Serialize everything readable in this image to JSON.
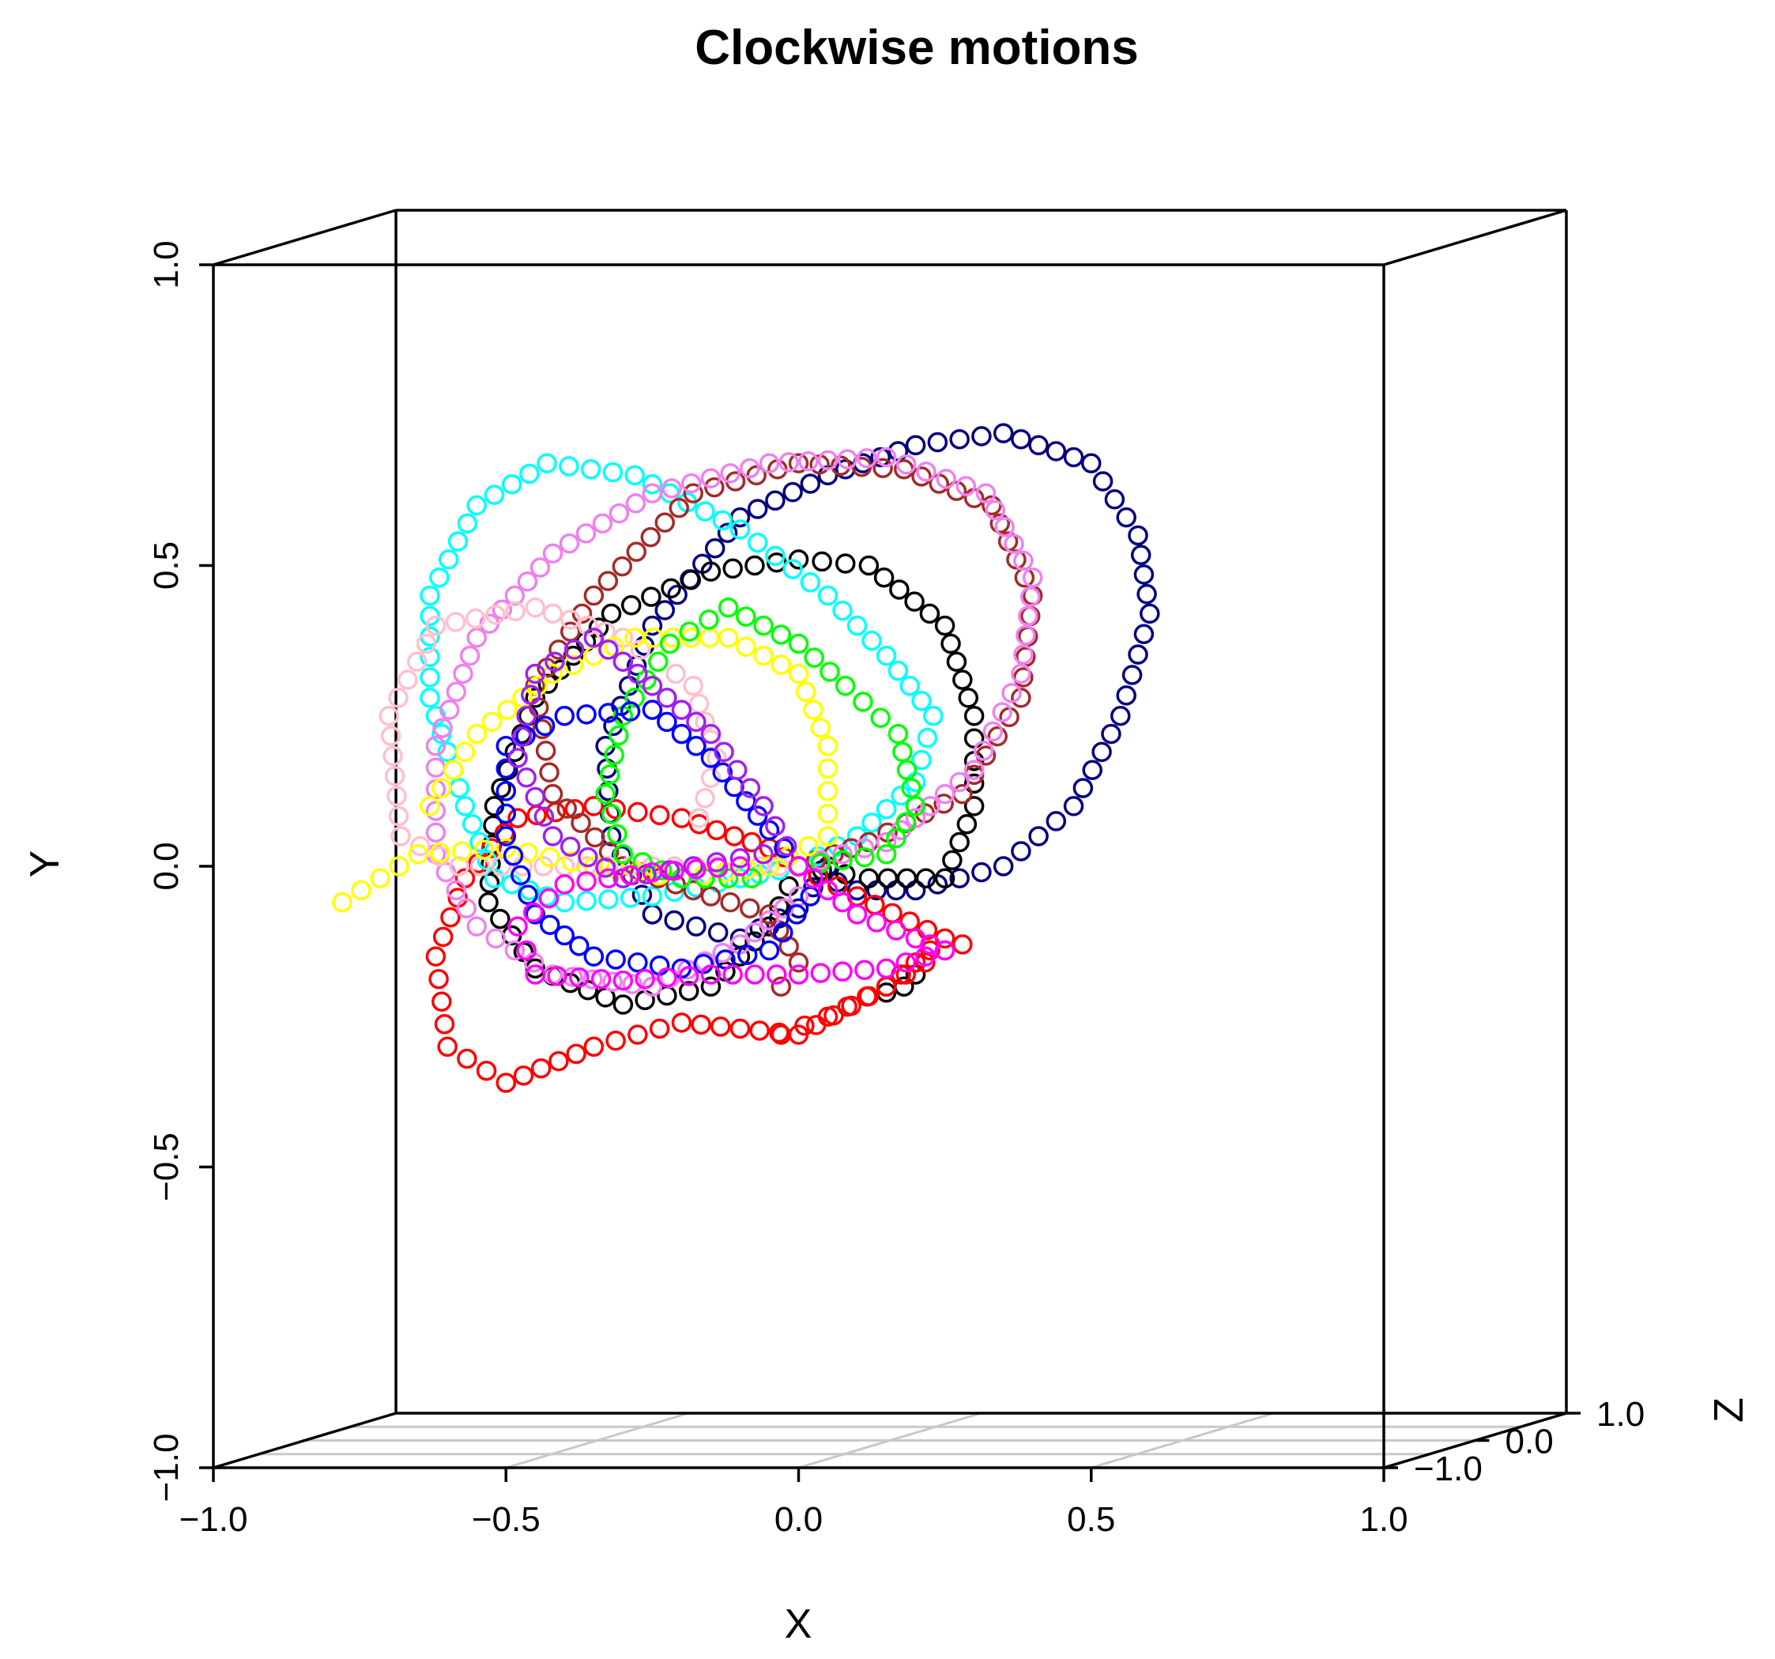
{
  "chart_data": {
    "type": "scatter",
    "projection": "3d",
    "title": "Clockwise motions",
    "xlabel": "X",
    "ylabel": "Y",
    "zlabel": "Z",
    "xlim": [
      -1.0,
      1.0
    ],
    "ylim": [
      -1.0,
      1.0
    ],
    "zlim": [
      -1.0,
      1.0
    ],
    "x_ticks": [
      "−1.0",
      "−0.5",
      "0.0",
      "0.5",
      "1.0"
    ],
    "y_ticks": [
      "−1.0",
      "−0.5",
      "0.0",
      "0.5",
      "1.0"
    ],
    "z_ticks": [
      "−1.0",
      "0.0",
      "1.0"
    ],
    "grid": "floor",
    "marker": "open-circle",
    "series": [
      {
        "color": "#000080",
        "points": [
          [
            0.0,
            0.0
          ],
          [
            0.1,
            -0.04
          ],
          [
            0.2,
            -0.04
          ],
          [
            0.35,
            0.0
          ],
          [
            0.47,
            0.1
          ],
          [
            0.55,
            0.25
          ],
          [
            0.6,
            0.42
          ],
          [
            0.58,
            0.55
          ],
          [
            0.5,
            0.67
          ],
          [
            0.35,
            0.72
          ],
          [
            0.2,
            0.7
          ],
          [
            0.05,
            0.65
          ],
          [
            -0.1,
            0.58
          ],
          [
            -0.25,
            0.4
          ],
          [
            -0.33,
            0.2
          ],
          [
            -0.32,
            0.05
          ],
          [
            -0.25,
            -0.08
          ],
          [
            -0.1,
            -0.12
          ],
          [
            0.0,
            -0.07
          ],
          [
            0.05,
            0.0
          ]
        ]
      },
      {
        "color": "#000000",
        "points": [
          [
            0.0,
            0.0
          ],
          [
            0.12,
            -0.02
          ],
          [
            0.25,
            -0.02
          ],
          [
            0.3,
            0.1
          ],
          [
            0.3,
            0.25
          ],
          [
            0.25,
            0.4
          ],
          [
            0.12,
            0.5
          ],
          [
            0.0,
            0.51
          ],
          [
            -0.15,
            0.49
          ],
          [
            -0.32,
            0.42
          ],
          [
            -0.45,
            0.28
          ],
          [
            -0.52,
            0.1
          ],
          [
            -0.53,
            -0.06
          ],
          [
            -0.45,
            -0.17
          ],
          [
            -0.3,
            -0.23
          ],
          [
            -0.15,
            -0.2
          ],
          [
            -0.05,
            -0.1
          ],
          [
            0.0,
            0.0
          ]
        ]
      },
      {
        "color": "#000000",
        "points": [
          [
            0.15,
            -0.21
          ],
          [
            0.18,
            -0.2
          ],
          [
            0.2,
            -0.18
          ]
        ]
      },
      {
        "color": "#ff0000",
        "points": [
          [
            0.0,
            0.0
          ],
          [
            0.1,
            -0.05
          ],
          [
            0.25,
            -0.12
          ],
          [
            0.15,
            -0.2
          ],
          [
            0.0,
            -0.28
          ],
          [
            -0.2,
            -0.26
          ],
          [
            -0.35,
            -0.3
          ],
          [
            -0.5,
            -0.36
          ],
          [
            -0.6,
            -0.3
          ],
          [
            -0.62,
            -0.15
          ],
          [
            -0.57,
            -0.02
          ],
          [
            -0.48,
            0.08
          ],
          [
            -0.35,
            0.1
          ],
          [
            -0.2,
            0.08
          ],
          [
            -0.05,
            0.03
          ],
          [
            0.0,
            0.0
          ]
        ]
      },
      {
        "color": "#ff0000",
        "points": [
          [
            -0.03,
            -0.28
          ],
          [
            0.05,
            -0.25
          ],
          [
            0.15,
            -0.2
          ],
          [
            0.25,
            -0.14
          ],
          [
            0.28,
            -0.13
          ]
        ]
      },
      {
        "color": "#00ffff",
        "points": [
          [
            0.0,
            0.0
          ],
          [
            0.1,
            0.05
          ],
          [
            0.2,
            0.14
          ],
          [
            0.23,
            0.25
          ],
          [
            0.15,
            0.35
          ],
          [
            0.05,
            0.45
          ],
          [
            -0.1,
            0.56
          ],
          [
            -0.28,
            0.65
          ],
          [
            -0.43,
            0.67
          ],
          [
            -0.55,
            0.6
          ],
          [
            -0.63,
            0.45
          ],
          [
            -0.63,
            0.28
          ],
          [
            -0.57,
            0.1
          ],
          [
            -0.52,
            -0.02
          ],
          [
            -0.4,
            -0.06
          ],
          [
            -0.25,
            -0.05
          ],
          [
            -0.1,
            -0.02
          ],
          [
            0.0,
            0.0
          ]
        ]
      },
      {
        "color": "#a52a2a",
        "points": [
          [
            0.0,
            0.0
          ],
          [
            0.12,
            0.04
          ],
          [
            0.28,
            0.12
          ],
          [
            0.38,
            0.28
          ],
          [
            0.4,
            0.45
          ],
          [
            0.33,
            0.6
          ],
          [
            0.18,
            0.66
          ],
          [
            0.0,
            0.67
          ],
          [
            -0.18,
            0.62
          ],
          [
            -0.35,
            0.45
          ],
          [
            -0.45,
            0.3
          ],
          [
            -0.42,
            0.12
          ],
          [
            -0.3,
            0.0
          ],
          [
            -0.15,
            -0.05
          ],
          [
            -0.05,
            -0.08
          ],
          [
            0.0,
            -0.16
          ],
          [
            -0.03,
            -0.2
          ]
        ]
      },
      {
        "color": "#ee82ee",
        "points": [
          [
            0.0,
            0.0
          ],
          [
            0.15,
            0.04
          ],
          [
            0.3,
            0.16
          ],
          [
            0.38,
            0.32
          ],
          [
            0.4,
            0.48
          ],
          [
            0.32,
            0.62
          ],
          [
            0.15,
            0.68
          ],
          [
            -0.05,
            0.67
          ],
          [
            -0.25,
            0.62
          ],
          [
            -0.42,
            0.52
          ],
          [
            -0.55,
            0.38
          ],
          [
            -0.62,
            0.2
          ],
          [
            -0.62,
            0.02
          ],
          [
            -0.55,
            -0.1
          ],
          [
            -0.42,
            -0.18
          ],
          [
            -0.25,
            -0.2
          ],
          [
            -0.1,
            -0.13
          ],
          [
            0.0,
            -0.05
          ]
        ]
      },
      {
        "color": "#ffc0cb",
        "points": [
          [
            0.0,
            0.0
          ],
          [
            -0.1,
            0.0
          ],
          [
            -0.25,
            0.0
          ],
          [
            -0.4,
            0.0
          ],
          [
            -0.58,
            0.0
          ],
          [
            -0.68,
            0.05
          ],
          [
            -0.7,
            0.25
          ],
          [
            -0.62,
            0.4
          ],
          [
            -0.45,
            0.43
          ],
          [
            -0.3,
            0.38
          ],
          [
            -0.18,
            0.3
          ],
          [
            -0.14,
            0.18
          ],
          [
            -0.17,
            0.08
          ]
        ]
      },
      {
        "color": "#ffff00",
        "points": [
          [
            -0.78,
            -0.06
          ],
          [
            -0.65,
            0.02
          ],
          [
            -0.5,
            0.03
          ],
          [
            -0.35,
            0.0
          ],
          [
            -0.2,
            -0.02
          ],
          [
            -0.05,
            0.0
          ],
          [
            0.05,
            0.05
          ],
          [
            0.05,
            0.2
          ],
          [
            0.0,
            0.32
          ],
          [
            -0.12,
            0.38
          ],
          [
            -0.28,
            0.38
          ],
          [
            -0.42,
            0.32
          ],
          [
            -0.55,
            0.22
          ],
          [
            -0.63,
            0.1
          ]
        ]
      },
      {
        "color": "#00ff00",
        "points": [
          [
            0.0,
            0.0
          ],
          [
            0.15,
            0.02
          ],
          [
            0.2,
            0.1
          ],
          [
            0.17,
            0.22
          ],
          [
            0.08,
            0.3
          ],
          [
            0.0,
            0.37
          ],
          [
            -0.12,
            0.43
          ],
          [
            -0.22,
            0.37
          ],
          [
            -0.3,
            0.25
          ],
          [
            -0.33,
            0.12
          ],
          [
            -0.3,
            0.02
          ],
          [
            -0.2,
            -0.02
          ],
          [
            -0.08,
            -0.02
          ]
        ]
      },
      {
        "color": "#0000ff",
        "points": [
          [
            0.0,
            0.0
          ],
          [
            -0.05,
            0.06
          ],
          [
            -0.15,
            0.18
          ],
          [
            -0.25,
            0.26
          ],
          [
            -0.4,
            0.25
          ],
          [
            -0.5,
            0.2
          ],
          [
            -0.5,
            0.05
          ],
          [
            -0.45,
            -0.08
          ],
          [
            -0.35,
            -0.15
          ],
          [
            -0.2,
            -0.17
          ],
          [
            -0.05,
            -0.14
          ],
          [
            0.02,
            -0.05
          ]
        ]
      },
      {
        "color": "#a020f0",
        "points": [
          [
            0.0,
            0.0
          ],
          [
            -0.06,
            0.1
          ],
          [
            -0.15,
            0.22
          ],
          [
            -0.25,
            0.3
          ],
          [
            -0.35,
            0.38
          ],
          [
            -0.45,
            0.32
          ],
          [
            -0.48,
            0.18
          ],
          [
            -0.42,
            0.05
          ],
          [
            -0.3,
            -0.02
          ],
          [
            -0.18,
            0.0
          ],
          [
            -0.06,
            0.02
          ]
        ]
      },
      {
        "color": "#ff00ff",
        "points": [
          [
            0.0,
            0.0
          ],
          [
            0.1,
            -0.08
          ],
          [
            0.2,
            -0.12
          ],
          [
            0.25,
            -0.14
          ],
          [
            0.15,
            -0.17
          ],
          [
            0.0,
            -0.18
          ],
          [
            -0.15,
            -0.18
          ],
          [
            -0.3,
            -0.19
          ],
          [
            -0.45,
            -0.18
          ],
          [
            -0.48,
            -0.1
          ],
          [
            -0.4,
            -0.03
          ],
          [
            -0.25,
            -0.01
          ],
          [
            -0.1,
            0.0
          ]
        ]
      }
    ]
  }
}
